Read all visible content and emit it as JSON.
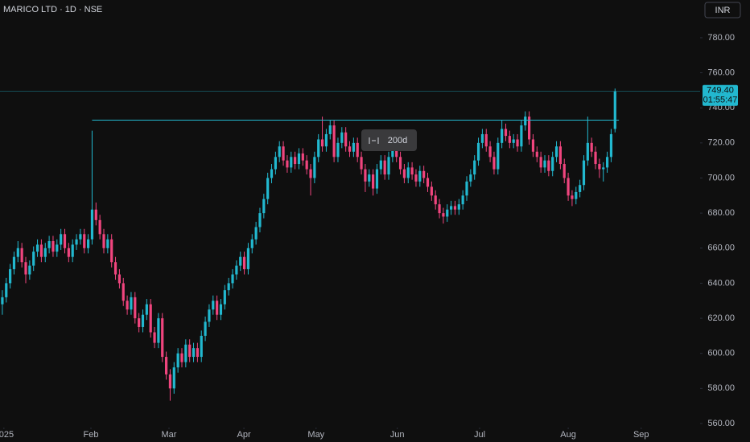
{
  "chart_data": {
    "type": "candlestick",
    "title": "MARICO LTD · 1D · NSE",
    "currency": "INR",
    "up_color": "#22b8cf",
    "down_color": "#f0457e",
    "grid": false,
    "ylim": [
      557.7,
      801.5
    ],
    "yticks": [
      {
        "value": 560,
        "label": "560.00"
      },
      {
        "value": 580,
        "label": "580.00"
      },
      {
        "value": 600,
        "label": "600.00"
      },
      {
        "value": 620,
        "label": "620.00"
      },
      {
        "value": 640,
        "label": "640.00"
      },
      {
        "value": 660,
        "label": "660.00"
      },
      {
        "value": 680,
        "label": "680.00"
      },
      {
        "value": 700,
        "label": "700.00"
      },
      {
        "value": 720,
        "label": "720.00"
      },
      {
        "value": 740,
        "label": "740.00"
      },
      {
        "value": 760,
        "label": "760.00"
      },
      {
        "value": 780,
        "label": "780.00"
      }
    ],
    "xlim": [
      -0.6,
      178.8
    ],
    "xticks": [
      {
        "value": 0.4,
        "label": "2025"
      },
      {
        "value": 22.7,
        "label": "Feb"
      },
      {
        "value": 42.7,
        "label": "Mar"
      },
      {
        "value": 61.9,
        "label": "Apr"
      },
      {
        "value": 80.4,
        "label": "May"
      },
      {
        "value": 101.2,
        "label": "Jun"
      },
      {
        "value": 122.3,
        "label": "Jul"
      },
      {
        "value": 145,
        "label": "Aug"
      },
      {
        "value": 163.7,
        "label": "Sep"
      }
    ],
    "level_line": {
      "value": 733,
      "from_x": 23,
      "to_x": 157,
      "color": "#22b8cf"
    },
    "last_price": {
      "value": 749.4,
      "label": "749.40"
    },
    "countdown": "01:55:47",
    "range_tooltip": "200d",
    "ohlc": [
      [
        628,
        636,
        622,
        632
      ],
      [
        632,
        643,
        629,
        640
      ],
      [
        640,
        651,
        637,
        648
      ],
      [
        648,
        658,
        645,
        655
      ],
      [
        655,
        664,
        652,
        660
      ],
      [
        660,
        663,
        649,
        652
      ],
      [
        652,
        655,
        640,
        645
      ],
      [
        645,
        653,
        642,
        650
      ],
      [
        650,
        661,
        647,
        658
      ],
      [
        658,
        665,
        655,
        662
      ],
      [
        662,
        665,
        652,
        655
      ],
      [
        655,
        663,
        652,
        660
      ],
      [
        660,
        667,
        657,
        664
      ],
      [
        664,
        667,
        655,
        658
      ],
      [
        658,
        665,
        655,
        662
      ],
      [
        662,
        671,
        659,
        668
      ],
      [
        668,
        671,
        657,
        660
      ],
      [
        660,
        663,
        652,
        655
      ],
      [
        655,
        665,
        652,
        662
      ],
      [
        662,
        668,
        659,
        665
      ],
      [
        665,
        671,
        662,
        668
      ],
      [
        668,
        671,
        657,
        660
      ],
      [
        660,
        668,
        657,
        665
      ],
      [
        665,
        727,
        662,
        682
      ],
      [
        682,
        686,
        673,
        676
      ],
      [
        676,
        679,
        665,
        668
      ],
      [
        668,
        671,
        657,
        660
      ],
      [
        660,
        668,
        657,
        665
      ],
      [
        665,
        668,
        649,
        652
      ],
      [
        652,
        655,
        642,
        645
      ],
      [
        645,
        648,
        637,
        640
      ],
      [
        640,
        643,
        627,
        630
      ],
      [
        630,
        633,
        622,
        625
      ],
      [
        625,
        635,
        622,
        632
      ],
      [
        632,
        635,
        617,
        620
      ],
      [
        620,
        623,
        612,
        615
      ],
      [
        615,
        625,
        612,
        622
      ],
      [
        622,
        631,
        619,
        628
      ],
      [
        628,
        631,
        609,
        612
      ],
      [
        612,
        615,
        603,
        606
      ],
      [
        606,
        623,
        603,
        620
      ],
      [
        620,
        623,
        595,
        598
      ],
      [
        598,
        601,
        585,
        588
      ],
      [
        588,
        591,
        573,
        580
      ],
      [
        580,
        595,
        577,
        592
      ],
      [
        592,
        603,
        589,
        600
      ],
      [
        600,
        603,
        592,
        595
      ],
      [
        595,
        608,
        592,
        605
      ],
      [
        605,
        608,
        595,
        598
      ],
      [
        598,
        606,
        595,
        603
      ],
      [
        603,
        606,
        595,
        598
      ],
      [
        598,
        613,
        595,
        610
      ],
      [
        610,
        621,
        607,
        618
      ],
      [
        618,
        628,
        615,
        625
      ],
      [
        625,
        633,
        622,
        630
      ],
      [
        630,
        633,
        619,
        622
      ],
      [
        622,
        631,
        619,
        628
      ],
      [
        628,
        639,
        625,
        636
      ],
      [
        636,
        643,
        633,
        640
      ],
      [
        640,
        648,
        637,
        645
      ],
      [
        645,
        653,
        642,
        650
      ],
      [
        650,
        658,
        647,
        655
      ],
      [
        655,
        658,
        645,
        648
      ],
      [
        648,
        663,
        645,
        660
      ],
      [
        660,
        668,
        657,
        665
      ],
      [
        665,
        675,
        662,
        672
      ],
      [
        672,
        683,
        669,
        680
      ],
      [
        680,
        691,
        677,
        688
      ],
      [
        688,
        703,
        685,
        700
      ],
      [
        700,
        708,
        697,
        705
      ],
      [
        705,
        715,
        702,
        712
      ],
      [
        712,
        721,
        709,
        718
      ],
      [
        718,
        721,
        707,
        710
      ],
      [
        710,
        713,
        703,
        706
      ],
      [
        706,
        715,
        703,
        712
      ],
      [
        712,
        715,
        705,
        708
      ],
      [
        708,
        717,
        705,
        714
      ],
      [
        714,
        717,
        707,
        710
      ],
      [
        710,
        713,
        702,
        705
      ],
      [
        705,
        708,
        690,
        700
      ],
      [
        700,
        715,
        697,
        712
      ],
      [
        712,
        725,
        709,
        722
      ],
      [
        722,
        735,
        715,
        718
      ],
      [
        718,
        728,
        715,
        725
      ],
      [
        725,
        733,
        722,
        730
      ],
      [
        730,
        733,
        709,
        712
      ],
      [
        712,
        723,
        709,
        720
      ],
      [
        720,
        729,
        717,
        726
      ],
      [
        726,
        729,
        715,
        718
      ],
      [
        718,
        721,
        712,
        715
      ],
      [
        715,
        723,
        712,
        720
      ],
      [
        720,
        723,
        709,
        712
      ],
      [
        712,
        715,
        702,
        705
      ],
      [
        705,
        708,
        692,
        698
      ],
      [
        698,
        705,
        695,
        702
      ],
      [
        702,
        705,
        690,
        694
      ],
      [
        694,
        708,
        691,
        705
      ],
      [
        705,
        713,
        702,
        710
      ],
      [
        710,
        713,
        699,
        702
      ],
      [
        702,
        715,
        699,
        712
      ],
      [
        712,
        719,
        709,
        716
      ],
      [
        716,
        719,
        709,
        712
      ],
      [
        712,
        715,
        702,
        705
      ],
      [
        705,
        708,
        697,
        700
      ],
      [
        700,
        709,
        697,
        706
      ],
      [
        706,
        709,
        699,
        702
      ],
      [
        702,
        705,
        695,
        698
      ],
      [
        698,
        707,
        695,
        704
      ],
      [
        704,
        707,
        697,
        700
      ],
      [
        700,
        703,
        692,
        695
      ],
      [
        695,
        698,
        687,
        690
      ],
      [
        690,
        693,
        682,
        685
      ],
      [
        685,
        688,
        677,
        680
      ],
      [
        680,
        683,
        674,
        678
      ],
      [
        678,
        685,
        675,
        682
      ],
      [
        682,
        687,
        679,
        684
      ],
      [
        684,
        687,
        679,
        682
      ],
      [
        682,
        688,
        679,
        685
      ],
      [
        685,
        693,
        682,
        690
      ],
      [
        690,
        701,
        687,
        698
      ],
      [
        698,
        705,
        695,
        702
      ],
      [
        702,
        713,
        699,
        710
      ],
      [
        710,
        723,
        707,
        720
      ],
      [
        720,
        728,
        717,
        725
      ],
      [
        725,
        728,
        715,
        718
      ],
      [
        718,
        721,
        709,
        712
      ],
      [
        712,
        715,
        702,
        705
      ],
      [
        705,
        723,
        702,
        720
      ],
      [
        720,
        733,
        717,
        728
      ],
      [
        728,
        731,
        721,
        724
      ],
      [
        724,
        727,
        717,
        720
      ],
      [
        720,
        725,
        717,
        722
      ],
      [
        722,
        725,
        715,
        718
      ],
      [
        718,
        733,
        715,
        730
      ],
      [
        730,
        738,
        727,
        735
      ],
      [
        735,
        738,
        719,
        722
      ],
      [
        722,
        725,
        712,
        715
      ],
      [
        715,
        718,
        709,
        712
      ],
      [
        712,
        715,
        703,
        706
      ],
      [
        706,
        713,
        703,
        710
      ],
      [
        710,
        713,
        701,
        704
      ],
      [
        704,
        715,
        701,
        712
      ],
      [
        712,
        721,
        709,
        718
      ],
      [
        718,
        721,
        705,
        708
      ],
      [
        708,
        711,
        697,
        700
      ],
      [
        700,
        703,
        687,
        690
      ],
      [
        690,
        693,
        684,
        688
      ],
      [
        688,
        695,
        685,
        692
      ],
      [
        692,
        699,
        689,
        696
      ],
      [
        696,
        713,
        693,
        710
      ],
      [
        710,
        735,
        707,
        720
      ],
      [
        720,
        723,
        712,
        715
      ],
      [
        715,
        718,
        705,
        708
      ],
      [
        708,
        711,
        700,
        705
      ],
      [
        705,
        709,
        698,
        706
      ],
      [
        706,
        715,
        703,
        712
      ],
      [
        712,
        728,
        709,
        725
      ],
      [
        728,
        751,
        726,
        749.4
      ]
    ]
  }
}
